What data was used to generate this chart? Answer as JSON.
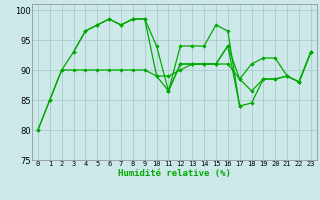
{
  "xlabel": "Humidité relative (%)",
  "xlim": [
    -0.5,
    23.5
  ],
  "ylim": [
    75,
    101
  ],
  "yticks": [
    75,
    80,
    85,
    90,
    95,
    100
  ],
  "xticks": [
    0,
    1,
    2,
    3,
    4,
    5,
    6,
    7,
    8,
    9,
    10,
    11,
    12,
    13,
    14,
    15,
    16,
    17,
    18,
    19,
    20,
    21,
    22,
    23
  ],
  "background_color": "#cce8e8",
  "grid_color": "#aacccc",
  "line_color": "#00aa00",
  "series": [
    {
      "x": [
        0,
        1,
        2,
        3,
        4,
        5,
        6,
        7,
        8,
        9,
        10,
        11,
        12,
        13,
        14,
        15,
        16,
        17
      ],
      "y": [
        80,
        85,
        90,
        93,
        96.5,
        97.5,
        98.5,
        97.5,
        98.5,
        98.5,
        94,
        86.5,
        94,
        94,
        94,
        97.5,
        96.5,
        84
      ]
    },
    {
      "x": [
        0,
        1,
        2,
        3,
        4,
        5,
        6,
        7,
        8,
        9,
        10,
        11,
        12,
        13,
        14,
        15,
        16,
        17,
        18,
        19,
        20,
        21,
        22,
        23
      ],
      "y": [
        80,
        85,
        90,
        90,
        90,
        90,
        90,
        90,
        90,
        90,
        89,
        89,
        90,
        91,
        91,
        91,
        91,
        88.5,
        91,
        92,
        92,
        89,
        88,
        93
      ]
    },
    {
      "x": [
        3,
        4,
        5,
        6,
        7,
        8,
        9,
        10,
        11,
        12,
        13,
        14,
        15,
        16,
        17,
        18,
        19,
        20,
        21,
        22,
        23
      ],
      "y": [
        93,
        96.5,
        97.5,
        98.5,
        97.5,
        98.5,
        98.5,
        89,
        86.5,
        91,
        91,
        91,
        91,
        94,
        88.5,
        86.5,
        88.5,
        88.5,
        89,
        88,
        93
      ]
    },
    {
      "x": [
        11,
        12,
        13,
        14,
        15,
        16,
        17,
        18,
        19,
        20,
        21,
        22,
        23
      ],
      "y": [
        86.5,
        91,
        91,
        91,
        91,
        94,
        84,
        84.5,
        88.5,
        88.5,
        89,
        88,
        93
      ]
    }
  ]
}
